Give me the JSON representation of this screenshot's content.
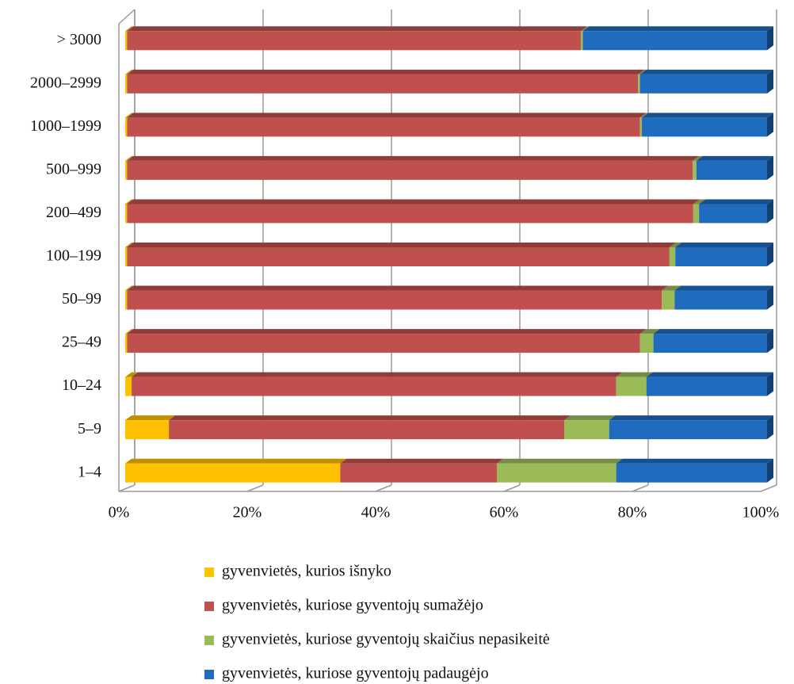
{
  "chart_data": {
    "type": "stacked_bar_horizontal",
    "categories": [
      "> 3000",
      "2000–2999",
      "1000–1999",
      "500–999",
      "200–499",
      "100–199",
      "50–99",
      "25–49",
      "10–24",
      "5–9",
      "1–4"
    ],
    "series": [
      {
        "name": "gyvenvietės, kurios išnyko",
        "color": "#ffc000",
        "values": [
          0.3,
          0.3,
          0.3,
          0.3,
          0.3,
          0.3,
          0.3,
          0.3,
          1.0,
          6.8,
          33.5
        ]
      },
      {
        "name": "gyvenvietės, kuriose gyventojų sumažėjo",
        "color": "#c0504d",
        "values": [
          70.7,
          79.6,
          79.9,
          88.1,
          88.2,
          84.5,
          83.3,
          79.9,
          75.5,
          61.6,
          24.4
        ]
      },
      {
        "name": "gyvenvietės, kuriose gyventojų skaičius nepasikeitė",
        "color": "#9bbb59",
        "values": [
          0.3,
          0.3,
          0.3,
          0.6,
          0.9,
          0.9,
          2.0,
          2.1,
          4.7,
          7.0,
          18.6
        ]
      },
      {
        "name": "gyvenvietės, kuriose gyventojų padaugėjo",
        "color": "#1f6bbd",
        "values": [
          28.7,
          19.8,
          19.5,
          11.0,
          10.6,
          14.3,
          14.4,
          17.7,
          18.8,
          24.6,
          23.5
        ]
      }
    ],
    "xlim": [
      0,
      100
    ],
    "xticks": [
      {
        "value": 0,
        "label": "0%"
      },
      {
        "value": 20,
        "label": "20%"
      },
      {
        "value": 40,
        "label": "40%"
      },
      {
        "value": 60,
        "label": "60%"
      },
      {
        "value": 80,
        "label": "80%"
      },
      {
        "value": 100,
        "label": "100%"
      }
    ],
    "grid": true,
    "legend": "bottom"
  }
}
